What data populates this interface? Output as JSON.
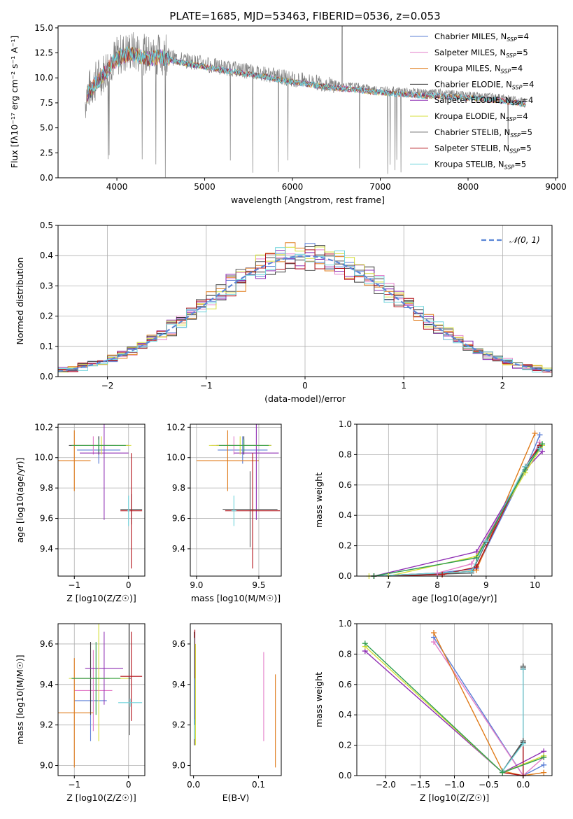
{
  "figure": {
    "title": "PLATE=1685, MJD=53463, FIBERID=0536, z=0.053"
  },
  "chart_data": [
    {
      "id": "spectrum",
      "type": "line",
      "xlabel": "wavelength [Angstrom, rest frame]",
      "ylabel": "Flux [fλ10⁻¹⁷ erg cm⁻² s⁻¹ A⁻¹]",
      "xlim": [
        3330,
        9020
      ],
      "ylim": [
        0,
        15.2
      ],
      "xticks": [
        4000,
        5000,
        6000,
        7000,
        8000,
        9000
      ],
      "yticks": [
        0.0,
        2.5,
        5.0,
        7.5,
        10.0,
        12.5,
        15.0
      ],
      "grid": false,
      "legend_position": "top-right",
      "data_color": "#808080",
      "data_points": [
        [
          3650,
          8.4
        ],
        [
          3750,
          9.6
        ],
        [
          3850,
          10.6
        ],
        [
          3950,
          11.8
        ],
        [
          4050,
          12.4
        ],
        [
          4150,
          12.7
        ],
        [
          4250,
          12.5
        ],
        [
          4350,
          12.2
        ],
        [
          4500,
          12.4
        ],
        [
          4650,
          12.0
        ],
        [
          4800,
          11.7
        ],
        [
          4950,
          11.5
        ],
        [
          5100,
          11.2
        ],
        [
          5250,
          11.0
        ],
        [
          5400,
          10.8
        ],
        [
          5550,
          10.6
        ],
        [
          5700,
          10.4
        ],
        [
          5850,
          10.1
        ],
        [
          6000,
          9.9
        ],
        [
          6150,
          9.7
        ],
        [
          6300,
          9.5
        ],
        [
          6450,
          9.3
        ],
        [
          6600,
          9.2
        ],
        [
          6750,
          9.1
        ],
        [
          6900,
          8.9
        ],
        [
          7050,
          8.8
        ],
        [
          7200,
          8.7
        ],
        [
          7350,
          8.6
        ],
        [
          7500,
          8.5
        ],
        [
          7650,
          8.5
        ],
        [
          7800,
          8.4
        ],
        [
          7950,
          8.3
        ],
        [
          8100,
          8.2
        ],
        [
          8250,
          8.1
        ],
        [
          8400,
          8.0
        ],
        [
          8550,
          7.8
        ],
        [
          8650,
          7.6
        ]
      ],
      "series": [
        {
          "name": "Chabrier MILES, N_SSP=4",
          "color": "#5B7FD6"
        },
        {
          "name": "Salpeter MILES, N_SSP=5",
          "color": "#E37FC9"
        },
        {
          "name": "Kroupa MILES, N_SSP=4",
          "color": "#E07B1A"
        },
        {
          "name": "Chabrier ELODIE, N_SSP=4",
          "color": "#3A3A3A"
        },
        {
          "name": "Salpeter ELODIE, N_SSP=4",
          "color": "#8E2DB3"
        },
        {
          "name": "Kroupa ELODIE, N_SSP=4",
          "color": "#D5DF3A"
        },
        {
          "name": "Chabrier STELIB, N_SSP=5",
          "color": "#5A5A5A"
        },
        {
          "name": "Salpeter STELIB, N_SSP=5",
          "color": "#B3121A"
        },
        {
          "name": "Kroupa STELIB, N_SSP=5",
          "color": "#6ED3DB"
        }
      ],
      "legend_labels": [
        {
          "main": "Chabrier MILES, N",
          "sub": "SSP",
          "tail": "=4"
        },
        {
          "main": "Salpeter MILES, N",
          "sub": "SSP",
          "tail": "=5"
        },
        {
          "main": "Kroupa MILES, N",
          "sub": "SSP",
          "tail": "=4"
        },
        {
          "main": "Chabrier ELODIE, N",
          "sub": "SSP",
          "tail": "=4"
        },
        {
          "main": "Salpeter ELODIE, N",
          "sub": "SSP",
          "tail": "=4"
        },
        {
          "main": "Kroupa ELODIE, N",
          "sub": "SSP",
          "tail": "=4"
        },
        {
          "main": "Chabrier STELIB, N",
          "sub": "SSP",
          "tail": "=5"
        },
        {
          "main": "Salpeter STELIB, N",
          "sub": "SSP",
          "tail": "=5"
        },
        {
          "main": "Kroupa STELIB, N",
          "sub": "SSP",
          "tail": "=5"
        }
      ]
    },
    {
      "id": "residuals",
      "type": "line",
      "xlabel": "(data-model)/error",
      "ylabel": "Normed distribution",
      "xlim": [
        -2.5,
        2.5
      ],
      "ylim": [
        0,
        0.5
      ],
      "xticks": [
        -2,
        -1,
        0,
        1,
        2
      ],
      "yticks": [
        0.0,
        0.1,
        0.2,
        0.3,
        0.4,
        0.5
      ],
      "grid": true,
      "legend_position": "top-right",
      "normal_label": "𝒩(0, 1)",
      "normal_color": "#5B86D6",
      "bin_width": 0.1,
      "histogram_start": -2.5,
      "histogram_colors": [
        "#5B7FD6",
        "#E37FC9",
        "#E07B1A",
        "#3A3A3A",
        "#8E2DB3",
        "#D5DF3A",
        "#5A5A5A",
        "#B3121A",
        "#6ED3DB"
      ]
    },
    {
      "id": "age-vs-Z",
      "type": "scatter",
      "xlabel": "Z [log10(Z/Z☉)]",
      "ylabel": "age [log10(age/yr)]",
      "xlim": [
        -1.3,
        0.3
      ],
      "ylim": [
        9.22,
        10.22
      ],
      "xticks": [
        -1,
        0
      ],
      "yticks": [
        9.4,
        9.6,
        9.8,
        10.0,
        10.2
      ],
      "grid": true,
      "points": [
        {
          "x": -0.55,
          "y": 10.05,
          "xerr": 0.4,
          "yerr": 0.09,
          "color": "#5B7FD6"
        },
        {
          "x": -0.65,
          "y": 10.08,
          "xerr": 0.42,
          "yerr": 0.06,
          "color": "#E37FC9"
        },
        {
          "x": -1.0,
          "y": 9.98,
          "xerr": 0.3,
          "yerr": 0.2,
          "color": "#E07B1A"
        },
        {
          "x": -0.55,
          "y": 10.08,
          "xerr": 0.55,
          "yerr": 0.06,
          "color": "#3A3A3A"
        },
        {
          "x": -0.45,
          "y": 10.03,
          "xerr": 0.45,
          "yerr": 0.44,
          "color": "#8E2DB3"
        },
        {
          "x": -0.5,
          "y": 10.08,
          "xerr": 0.55,
          "yerr": 0.06,
          "color": "#D5DF3A"
        },
        {
          "x": 0.05,
          "y": 9.66,
          "xerr": 0.2,
          "yerr": 0.1,
          "color": "#5A5A5A"
        },
        {
          "x": 0.05,
          "y": 9.65,
          "xerr": 0.2,
          "yerr": 0.38,
          "color": "#B3121A"
        },
        {
          "x": 0.0,
          "y": 9.65,
          "xerr": 0.02,
          "yerr": 0.1,
          "color": "#6ED3DB"
        },
        {
          "x": -0.55,
          "y": 10.08,
          "xerr": 0.5,
          "yerr": 0.04,
          "color": "#2E9E4E"
        }
      ]
    },
    {
      "id": "age-vs-mass",
      "type": "scatter",
      "xlabel": "mass [log10(M/M☉)]",
      "ylabel": "",
      "xlim": [
        8.95,
        9.68
      ],
      "ylim": [
        9.22,
        10.22
      ],
      "xticks": [
        9.0,
        9.5
      ],
      "yticks": [
        9.4,
        9.6,
        9.8,
        10.0,
        10.2
      ],
      "grid": true,
      "points": [
        {
          "x": 9.37,
          "y": 10.05,
          "xerr": 0.2,
          "yerr": 0.09,
          "color": "#5B7FD6"
        },
        {
          "x": 9.3,
          "y": 10.08,
          "xerr": 0.18,
          "yerr": 0.06,
          "color": "#E37FC9"
        },
        {
          "x": 9.25,
          "y": 9.98,
          "xerr": 0.25,
          "yerr": 0.2,
          "color": "#E07B1A"
        },
        {
          "x": 9.38,
          "y": 10.08,
          "xerr": 0.22,
          "yerr": 0.06,
          "color": "#3A3A3A"
        },
        {
          "x": 9.48,
          "y": 10.03,
          "xerr": 0.18,
          "yerr": 0.44,
          "color": "#8E2DB3"
        },
        {
          "x": 9.35,
          "y": 10.08,
          "xerr": 0.25,
          "yerr": 0.06,
          "color": "#D5DF3A"
        },
        {
          "x": 9.43,
          "y": 9.66,
          "xerr": 0.22,
          "yerr": 0.25,
          "color": "#5A5A5A"
        },
        {
          "x": 9.45,
          "y": 9.65,
          "xerr": 0.22,
          "yerr": 0.38,
          "color": "#B3121A"
        },
        {
          "x": 9.3,
          "y": 9.65,
          "xerr": 0.02,
          "yerr": 0.1,
          "color": "#6ED3DB"
        },
        {
          "x": 9.38,
          "y": 10.08,
          "xerr": 0.2,
          "yerr": 0.04,
          "color": "#2E9E4E"
        }
      ]
    },
    {
      "id": "weight-vs-age",
      "type": "line",
      "xlabel": "age [log10(age/yr)]",
      "ylabel": "mass weight",
      "xlim": [
        6.35,
        10.35
      ],
      "ylim": [
        0,
        1.0
      ],
      "xticks": [
        7,
        8,
        9,
        10
      ],
      "yticks": [
        0.0,
        0.2,
        0.4,
        0.6,
        0.8,
        1.0
      ],
      "grid": true,
      "series": [
        {
          "color": "#5B7FD6",
          "x": [
            6.7,
            8.0,
            8.8,
            9.8,
            10.1
          ],
          "y": [
            0.0,
            0.02,
            0.05,
            0.7,
            0.93
          ]
        },
        {
          "color": "#E37FC9",
          "x": [
            6.7,
            8.0,
            8.7,
            9.8,
            10.1
          ],
          "y": [
            0.0,
            0.02,
            0.08,
            0.7,
            0.88
          ]
        },
        {
          "color": "#E07B1A",
          "x": [
            6.7,
            8.1,
            8.8,
            10.0
          ],
          "y": [
            0.0,
            0.01,
            0.04,
            0.94
          ]
        },
        {
          "color": "#3A3A3A",
          "x": [
            6.7,
            8.7,
            9.0,
            9.8,
            10.1
          ],
          "y": [
            0.0,
            0.03,
            0.22,
            0.72,
            0.85
          ]
        },
        {
          "color": "#8E2DB3",
          "x": [
            6.7,
            8.8,
            9.8,
            10.15
          ],
          "y": [
            0.0,
            0.16,
            0.7,
            0.82
          ]
        },
        {
          "color": "#D5DF3A",
          "x": [
            6.6,
            7.0,
            8.8,
            9.8,
            10.15
          ],
          "y": [
            0.0,
            0.0,
            0.13,
            0.68,
            0.86
          ]
        },
        {
          "color": "#5A5A5A",
          "x": [
            6.7,
            8.7,
            9.0,
            9.8,
            10.1
          ],
          "y": [
            0.0,
            0.02,
            0.22,
            0.72,
            0.84
          ]
        },
        {
          "color": "#B3121A",
          "x": [
            6.7,
            8.1,
            8.8,
            9.8,
            10.1
          ],
          "y": [
            0.0,
            0.01,
            0.06,
            0.72,
            0.86
          ]
        },
        {
          "color": "#6ED3DB",
          "x": [
            6.7,
            8.7,
            9.0,
            9.8,
            10.1
          ],
          "y": [
            0.0,
            0.03,
            0.23,
            0.72,
            0.84
          ]
        },
        {
          "color": "#2E9E4E",
          "x": [
            6.7,
            8.8,
            9.8,
            10.15
          ],
          "y": [
            0.0,
            0.12,
            0.7,
            0.87
          ]
        }
      ]
    },
    {
      "id": "mass-vs-Z",
      "type": "scatter",
      "xlabel": "Z [log10(Z/Z☉)]",
      "ylabel": "mass [log10(M/M☉)]",
      "xlim": [
        -1.3,
        0.3
      ],
      "ylim": [
        8.95,
        9.7
      ],
      "xticks": [
        -1,
        0
      ],
      "yticks": [
        9.0,
        9.2,
        9.4,
        9.6
      ],
      "grid": true,
      "points": [
        {
          "x": -0.7,
          "y": 9.32,
          "xerr": 0.3,
          "yerr": 0.2,
          "color": "#5B7FD6"
        },
        {
          "x": -0.65,
          "y": 9.37,
          "xerr": 0.35,
          "yerr": 0.2,
          "color": "#E37FC9"
        },
        {
          "x": -1.0,
          "y": 9.26,
          "xerr": 0.35,
          "yerr": 0.27,
          "color": "#E07B1A"
        },
        {
          "x": -0.7,
          "y": 9.43,
          "xerr": 0.35,
          "yerr": 0.18,
          "color": "#3A3A3A"
        },
        {
          "x": -0.45,
          "y": 9.48,
          "xerr": 0.35,
          "yerr": 0.18,
          "color": "#8E2DB3"
        },
        {
          "x": -0.55,
          "y": 9.43,
          "xerr": 0.55,
          "yerr": 0.31,
          "color": "#D5DF3A"
        },
        {
          "x": 0.02,
          "y": 9.43,
          "xerr": 0.02,
          "yerr": 0.28,
          "color": "#5A5A5A"
        },
        {
          "x": 0.05,
          "y": 9.44,
          "xerr": 0.2,
          "yerr": 0.22,
          "color": "#B3121A"
        },
        {
          "x": 0.03,
          "y": 9.31,
          "xerr": 0.22,
          "yerr": 0.02,
          "color": "#6ED3DB"
        },
        {
          "x": -0.6,
          "y": 9.43,
          "xerr": 0.45,
          "yerr": 0.18,
          "color": "#2E9E4E"
        }
      ]
    },
    {
      "id": "mass-vs-EBV",
      "type": "scatter",
      "xlabel": "E(B-V)",
      "ylabel": "",
      "xlim": [
        -0.005,
        0.135
      ],
      "ylim": [
        8.95,
        9.7
      ],
      "xticks": [
        0.0,
        0.1
      ],
      "yticks": [
        9.0,
        9.2,
        9.4,
        9.6
      ],
      "grid": false,
      "points": [
        {
          "x": 0.002,
          "y": 9.4,
          "xerr": 0.0,
          "yerr": 0.2,
          "color": "#5B7FD6"
        },
        {
          "x": 0.108,
          "y": 9.34,
          "xerr": 0.0,
          "yerr": 0.22,
          "color": "#E37FC9"
        },
        {
          "x": 0.126,
          "y": 9.22,
          "xerr": 0.0,
          "yerr": 0.23,
          "color": "#E07B1A"
        },
        {
          "x": 0.001,
          "y": 9.3,
          "xerr": 0.0,
          "yerr": 0.2,
          "color": "#3A3A3A"
        },
        {
          "x": 0.002,
          "y": 9.45,
          "xerr": 0.0,
          "yerr": 0.22,
          "color": "#8E2DB3"
        },
        {
          "x": 0.003,
          "y": 9.35,
          "xerr": 0.0,
          "yerr": 0.25,
          "color": "#D5DF3A"
        },
        {
          "x": 0.001,
          "y": 9.38,
          "xerr": 0.0,
          "yerr": 0.28,
          "color": "#5A5A5A"
        },
        {
          "x": 0.002,
          "y": 9.55,
          "xerr": 0.0,
          "yerr": 0.12,
          "color": "#B3121A"
        },
        {
          "x": 0.001,
          "y": 9.38,
          "xerr": 0.0,
          "yerr": 0.25,
          "color": "#6ED3DB"
        }
      ]
    },
    {
      "id": "weight-vs-Z",
      "type": "line",
      "xlabel": "Z [log10(Z/Z☉)]",
      "ylabel": "mass weight",
      "xlim": [
        -2.42,
        0.42
      ],
      "ylim": [
        0,
        1.0
      ],
      "xticks": [
        -2.0,
        -1.5,
        -1.0,
        -0.5,
        0.0
      ],
      "yticks": [
        0.0,
        0.2,
        0.4,
        0.6,
        0.8,
        1.0
      ],
      "grid": true,
      "series": [
        {
          "color": "#5B7FD6",
          "x": [
            -1.3,
            0.0,
            0.3
          ],
          "y": [
            0.91,
            0.0,
            0.07
          ]
        },
        {
          "color": "#E37FC9",
          "x": [
            -1.3,
            0.0,
            0.3
          ],
          "y": [
            0.88,
            0.0,
            0.12
          ]
        },
        {
          "color": "#E07B1A",
          "x": [
            -1.3,
            -0.3,
            0.0,
            0.3
          ],
          "y": [
            0.94,
            0.03,
            0.0,
            0.02
          ]
        },
        {
          "color": "#3A3A3A",
          "x": [
            -0.3,
            0.0,
            0.0,
            0.0
          ],
          "y": [
            0.03,
            0.22,
            0.0,
            0.72
          ]
        },
        {
          "color": "#8E2DB3",
          "x": [
            -2.3,
            -0.3,
            0.3
          ],
          "y": [
            0.82,
            0.02,
            0.16
          ]
        },
        {
          "color": "#D5DF3A",
          "x": [
            -2.3,
            -0.3,
            0.3
          ],
          "y": [
            0.85,
            0.02,
            0.13
          ]
        },
        {
          "color": "#5A5A5A",
          "x": [
            -0.3,
            0.0,
            0.0
          ],
          "y": [
            0.03,
            0.23,
            0.71
          ]
        },
        {
          "color": "#B3121A",
          "x": [
            -0.3,
            0.0,
            0.0
          ],
          "y": [
            0.02,
            0.0,
            0.7
          ]
        },
        {
          "color": "#6ED3DB",
          "x": [
            -0.3,
            0.0,
            0.0
          ],
          "y": [
            0.03,
            0.21,
            0.7
          ]
        },
        {
          "color": "#2E9E4E",
          "x": [
            -2.3,
            -0.3,
            0.3
          ],
          "y": [
            0.87,
            0.02,
            0.12
          ]
        }
      ]
    }
  ]
}
